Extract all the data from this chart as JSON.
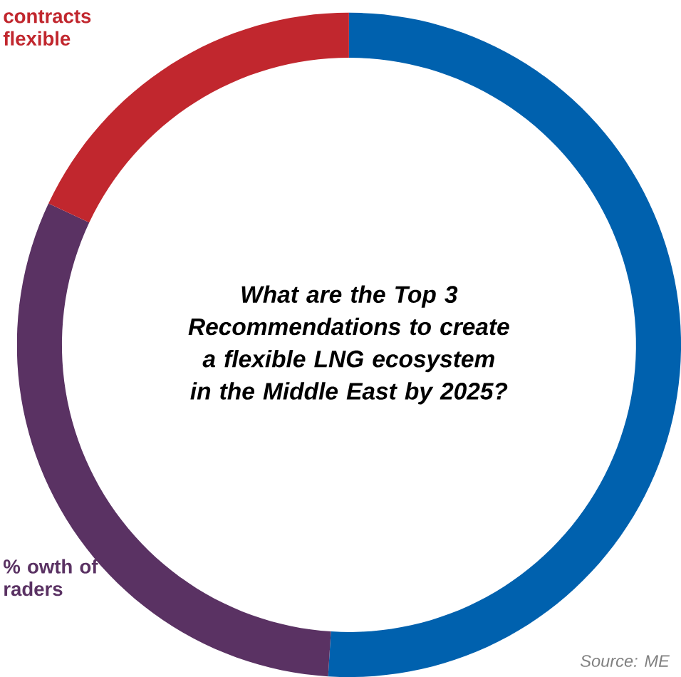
{
  "chart_data": {
    "type": "donut",
    "title": "What are the Top 3 Recommendations to create a flexible LNG ecosystem in the Middle East by 2025?",
    "categories": [
      null,
      "% owth of raders",
      "contracts flexible"
    ],
    "values": [
      51,
      31,
      18
    ],
    "colors": [
      "#0061ae",
      "#5a3263",
      "#c1272e"
    ],
    "annotations": [
      "Source: ME"
    ]
  }
}
